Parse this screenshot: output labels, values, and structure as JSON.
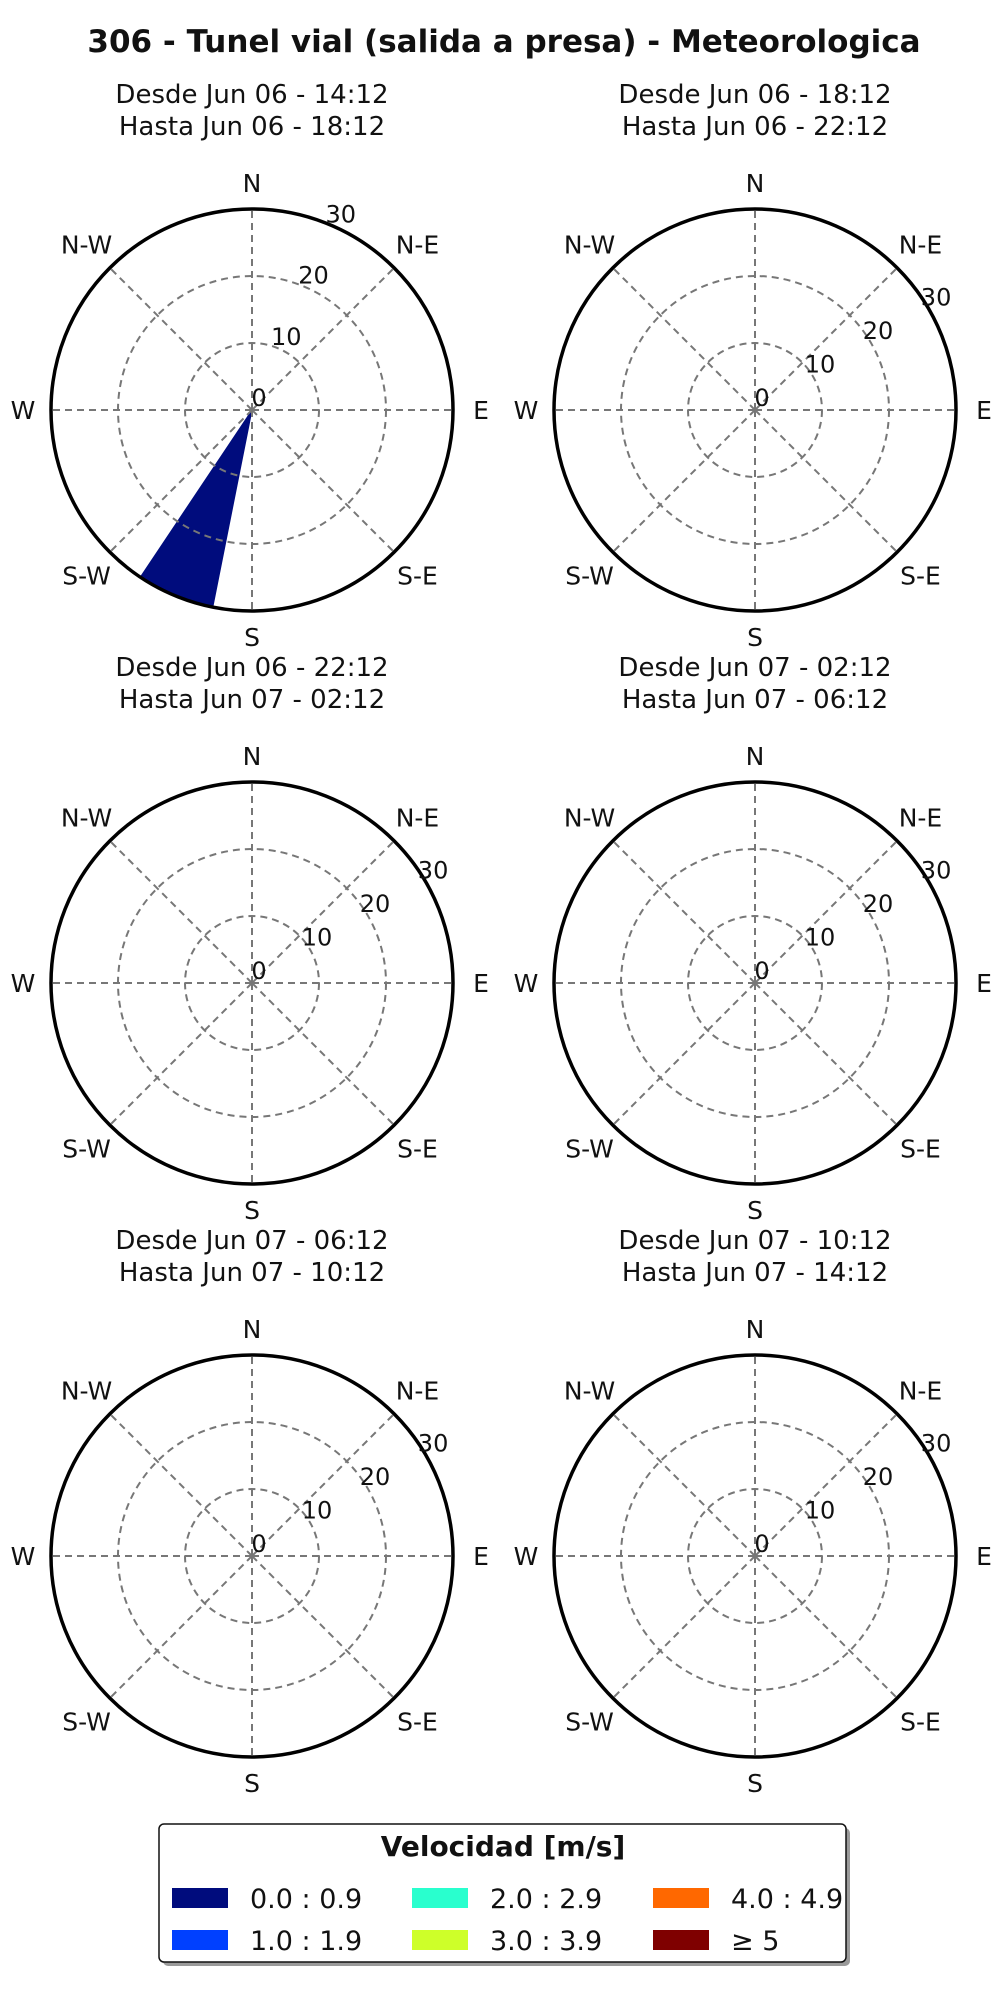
{
  "chart_data": {
    "type": "wind-rose",
    "title": "306 - Tunel vial (salida a presa) - Meteorologica",
    "directions": [
      "N",
      "N-E",
      "E",
      "S-E",
      "S",
      "S-W",
      "W",
      "N-W"
    ],
    "radial_ticks": [
      "0",
      "10",
      "20",
      "30"
    ],
    "rmax": 30,
    "panels": [
      {
        "from": "Desde Jun 06 - 14:12",
        "to": "Hasta Jun 06 - 18:12",
        "bars": [
          {
            "direction_deg": 202.5,
            "width_deg": 22.5,
            "bin": "0.0 : 0.9",
            "value": 30
          }
        ]
      },
      {
        "from": "Desde Jun 06 - 18:12",
        "to": "Hasta Jun 06 - 22:12",
        "bars": []
      },
      {
        "from": "Desde Jun 06 - 22:12",
        "to": "Hasta Jun 07 - 02:12",
        "bars": []
      },
      {
        "from": "Desde Jun 07 - 02:12",
        "to": "Hasta Jun 07 - 06:12",
        "bars": []
      },
      {
        "from": "Desde Jun 07 - 06:12",
        "to": "Hasta Jun 07 - 10:12",
        "bars": []
      },
      {
        "from": "Desde Jun 07 - 10:12",
        "to": "Hasta Jun 07 - 14:12",
        "bars": []
      }
    ],
    "legend": {
      "title": "Velocidad [m/s]",
      "items": [
        {
          "label": "0.0 : 0.9",
          "color": "#000c7d"
        },
        {
          "label": "2.0 : 2.9",
          "color": "#29ffce"
        },
        {
          "label": "4.0 : 4.9",
          "color": "#ff6800"
        },
        {
          "label": "1.0 : 1.9",
          "color": "#0040ff"
        },
        {
          "label": "3.0 : 3.9",
          "color": "#ceff29"
        },
        {
          "label": "≥ 5",
          "color": "#7f0000"
        }
      ]
    }
  }
}
